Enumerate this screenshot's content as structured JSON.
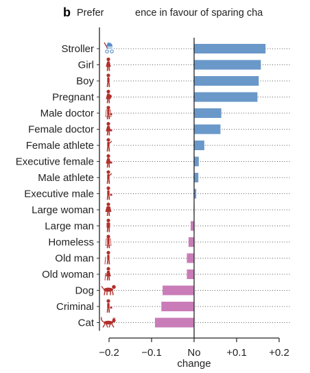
{
  "panel_letter": "b",
  "chart_data": {
    "type": "bar",
    "orientation": "horizontal",
    "title_left": "Prefer",
    "title_right": "ence in favour of sparing cha",
    "categories": [
      "Stroller",
      "Girl",
      "Boy",
      "Pregnant",
      "Male doctor",
      "Female doctor",
      "Female athlete",
      "Executive female",
      "Male athlete",
      "Executive male",
      "Large woman",
      "Large man",
      "Homeless",
      "Old man",
      "Old woman",
      "Dog",
      "Criminal",
      "Cat"
    ],
    "values": [
      0.168,
      0.157,
      0.152,
      0.149,
      0.064,
      0.062,
      0.024,
      0.011,
      0.01,
      0.005,
      -0.001,
      -0.008,
      -0.013,
      -0.017,
      -0.017,
      -0.074,
      -0.077,
      -0.092
    ],
    "x_ticks": [
      -0.2,
      -0.1,
      0,
      0.1,
      0.2
    ],
    "x_tick_labels": [
      "−0.2",
      "−0.1",
      "No",
      "+0.1",
      "+0.2"
    ],
    "x_zero_sublabel": "change",
    "xlim": [
      -0.25,
      0.25
    ],
    "grid": "dotted guide lines per row",
    "colors": {
      "positive": "#6a98c9",
      "negative": "#c97cb8",
      "icon": "#b0302c",
      "stroller_icon": "#5b8fc9"
    },
    "icons": [
      "stroller-icon",
      "girl-icon",
      "boy-icon",
      "pregnant-woman-icon",
      "male-doctor-icon",
      "female-doctor-icon",
      "female-athlete-icon",
      "executive-female-icon",
      "male-athlete-icon",
      "executive-male-icon",
      "large-woman-icon",
      "large-man-icon",
      "homeless-icon",
      "old-man-icon",
      "old-woman-icon",
      "dog-icon",
      "criminal-icon",
      "cat-icon"
    ]
  }
}
